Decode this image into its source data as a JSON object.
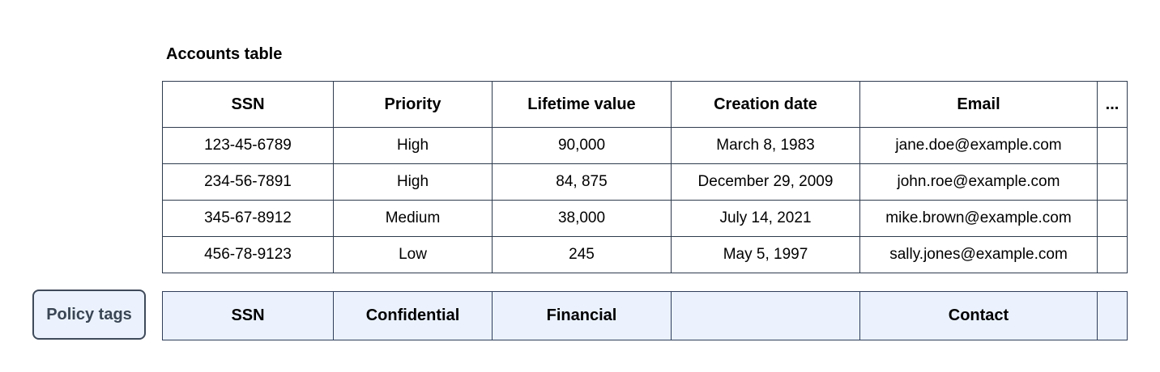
{
  "title": "Accounts table",
  "accounts_table": {
    "columns": [
      "SSN",
      "Priority",
      "Lifetime value",
      "Creation date",
      "Email",
      "..."
    ],
    "rows": [
      [
        "123-45-6789",
        "High",
        "90,000",
        "March 8, 1983",
        "jane.doe@example.com",
        ""
      ],
      [
        "234-56-7891",
        "High",
        "84, 875",
        "December 29, 2009",
        "john.roe@example.com",
        ""
      ],
      [
        "345-67-8912",
        "Medium",
        "38,000",
        "July 14, 2021",
        "mike.brown@example.com",
        ""
      ],
      [
        "456-78-9123",
        "Low",
        "245",
        "May 5, 1997",
        "sally.jones@example.com",
        ""
      ]
    ]
  },
  "policy_tags": {
    "button_label": "Policy tags",
    "tags": [
      "SSN",
      "Confidential",
      "Financial",
      "",
      "Contact",
      ""
    ]
  },
  "colors": {
    "background": "#ffffff",
    "text": "#000000",
    "table_border": "#2e3b4e",
    "tags_background": "#ebf2fd",
    "tags_border": "#2f3e5a",
    "button_border": "#3f4a5a",
    "button_text": "#3a4554"
  }
}
